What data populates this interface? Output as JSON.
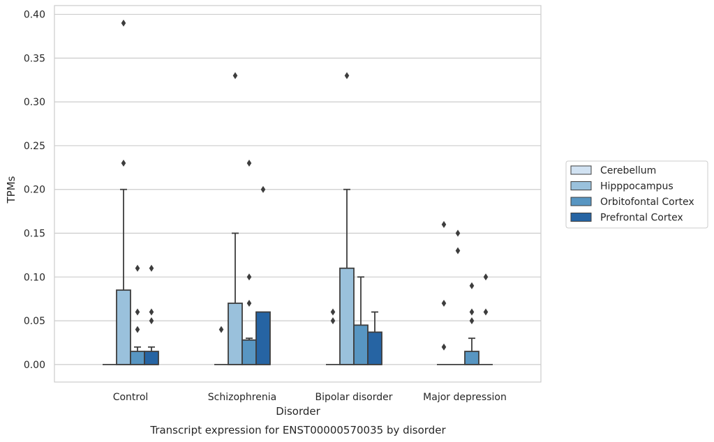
{
  "chart_data": {
    "type": "box",
    "xlabel": "Disorder",
    "ylabel": "TPMs",
    "caption": "Transcript expression for ENST00000570035 by disorder",
    "ylim": [
      -0.02,
      0.41
    ],
    "yticks": [
      "0.00",
      "0.05",
      "0.10",
      "0.15",
      "0.20",
      "0.25",
      "0.30",
      "0.35",
      "0.40"
    ],
    "categories": [
      "Control",
      "Schizophrenia",
      "Bipolar disorder",
      "Major depression"
    ],
    "grid": "horizontal",
    "legend_position": "right",
    "series": [
      {
        "name": "Cerebellum",
        "color": "#d1e2f2",
        "boxes": [
          {
            "q1": 0,
            "median": 0,
            "q3": 0,
            "whisker_low": 0,
            "whisker_high": 0,
            "outliers": []
          },
          {
            "q1": 0,
            "median": 0,
            "q3": 0,
            "whisker_low": 0,
            "whisker_high": 0,
            "outliers": []
          },
          {
            "q1": 0,
            "median": 0,
            "q3": 0,
            "whisker_low": 0,
            "whisker_high": 0,
            "outliers": []
          },
          {
            "q1": 0,
            "median": 0,
            "q3": 0,
            "whisker_low": 0,
            "whisker_high": 0,
            "outliers": [
              0.16,
              0.07,
              0.02
            ]
          }
        ]
      },
      {
        "name": "Hipppocampus",
        "color": "#9ac1dc",
        "boxes": [
          {
            "q1": 0,
            "median": 0,
            "q3": 0.085,
            "whisker_low": 0,
            "whisker_high": 0.2,
            "outliers": [
              0.39,
              0.23
            ]
          },
          {
            "q1": 0,
            "median": 0,
            "q3": 0.07,
            "whisker_low": 0,
            "whisker_high": 0.15,
            "outliers": [
              0.33
            ]
          },
          {
            "q1": 0,
            "median": 0,
            "q3": 0.11,
            "whisker_low": 0,
            "whisker_high": 0.2,
            "outliers": [
              0.33
            ]
          },
          {
            "q1": 0,
            "median": 0,
            "q3": 0,
            "whisker_low": 0,
            "whisker_high": 0,
            "outliers": [
              0.15,
              0.13
            ]
          }
        ]
      },
      {
        "name": "Orbitofontal Cortex",
        "color": "#5896c2",
        "boxes": [
          {
            "q1": 0,
            "median": 0,
            "q3": 0.015,
            "whisker_low": 0,
            "whisker_high": 0.02,
            "outliers": [
              0.11,
              0.06,
              0.04
            ]
          },
          {
            "q1": 0,
            "median": 0,
            "q3": 0.028,
            "whisker_low": 0,
            "whisker_high": 0.03,
            "outliers": [
              0.23,
              0.1,
              0.07
            ]
          },
          {
            "q1": 0,
            "median": 0,
            "q3": 0.045,
            "whisker_low": 0,
            "whisker_high": 0.1,
            "outliers": []
          },
          {
            "q1": 0,
            "median": 0,
            "q3": 0.015,
            "whisker_low": 0,
            "whisker_high": 0.03,
            "outliers": [
              0.09,
              0.06,
              0.05
            ]
          }
        ]
      },
      {
        "name": "Prefrontal Cortex",
        "color": "#2664a3",
        "boxes": [
          {
            "q1": 0,
            "median": 0,
            "q3": 0.015,
            "whisker_low": 0,
            "whisker_high": 0.02,
            "outliers": [
              0.11,
              0.06,
              0.05
            ]
          },
          {
            "q1": 0,
            "median": 0,
            "q3": 0.06,
            "whisker_low": 0,
            "whisker_high": 0.06,
            "outliers": [
              0.2
            ]
          },
          {
            "q1": 0,
            "median": 0,
            "q3": 0.037,
            "whisker_low": 0,
            "whisker_high": 0.06,
            "outliers": []
          },
          {
            "q1": 0,
            "median": 0,
            "q3": 0,
            "whisker_low": 0,
            "whisker_high": 0,
            "outliers": [
              0.1,
              0.06
            ]
          }
        ]
      }
    ],
    "extra_outliers": [
      {
        "category": 1,
        "series": 0,
        "values": [
          0.04
        ]
      },
      {
        "category": 2,
        "series": 0,
        "values": [
          0.06,
          0.05
        ]
      }
    ]
  }
}
